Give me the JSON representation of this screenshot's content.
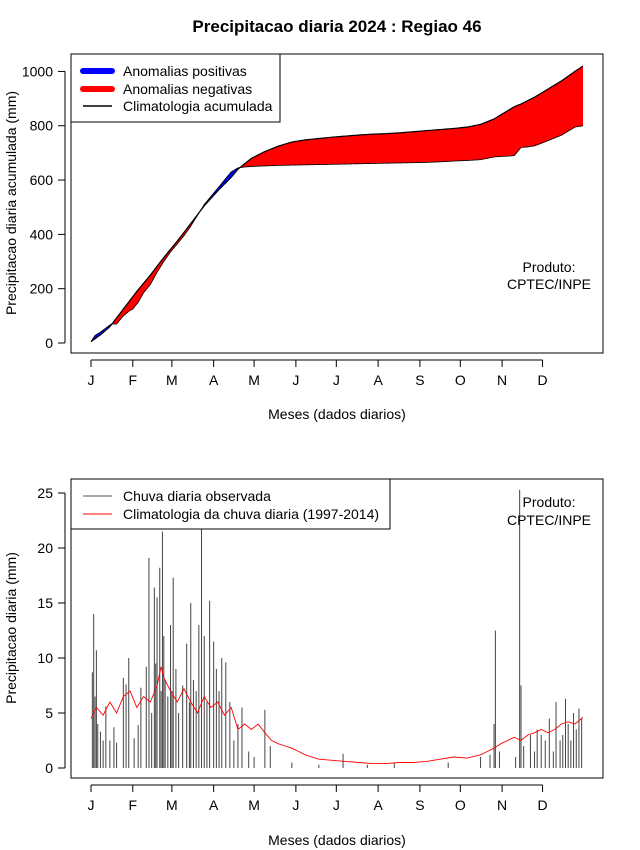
{
  "title": "Precipitacao diaria 2024 : Regiao 46",
  "chart_data": [
    {
      "type": "area",
      "ylabel": "Precipitacao diaria acumulada (mm)",
      "xlabel": "Meses (dados diarios)",
      "xlim": [
        1,
        366
      ],
      "ylim": [
        0,
        1020
      ],
      "grid": false,
      "month_ticks": [
        "J",
        "F",
        "M",
        "A",
        "M",
        "J",
        "J",
        "A",
        "S",
        "O",
        "N",
        "D"
      ],
      "y_ticks": [
        "0",
        "200",
        "400",
        "600",
        "800",
        "1000"
      ],
      "legend_position": "top-left",
      "legend": [
        {
          "label": "Anomalias positivas",
          "color": "#0000ff"
        },
        {
          "label": "Anomalias negativas",
          "color": "#ff0000"
        },
        {
          "label": "Climatologia acumulada",
          "color": "#000000"
        }
      ],
      "annotation": [
        "Produto:",
        "CPTEC/INPE"
      ],
      "series": [
        {
          "key": "observed",
          "days": [
            1,
            4,
            8,
            12,
            16,
            20,
            25,
            30,
            32,
            36,
            40,
            45,
            50,
            55,
            60,
            65,
            70,
            75,
            80,
            85,
            90,
            95,
            100,
            105,
            110,
            115,
            120,
            125,
            130,
            135,
            140,
            150,
            160,
            170,
            180,
            190,
            200,
            210,
            220,
            230,
            240,
            250,
            260,
            270,
            280,
            290,
            298,
            300,
            305,
            310,
            315,
            320,
            325,
            330,
            335,
            340,
            345,
            350,
            355,
            360,
            366
          ],
          "values": [
            5,
            28,
            40,
            55,
            70,
            70,
            100,
            120,
            125,
            150,
            185,
            215,
            260,
            300,
            335,
            365,
            395,
            430,
            470,
            510,
            540,
            570,
            600,
            630,
            645,
            648,
            650,
            651,
            652,
            653,
            654,
            655,
            656,
            657,
            658,
            659,
            660,
            661,
            662,
            663,
            664,
            665,
            667,
            670,
            672,
            675,
            683,
            685,
            687,
            688,
            690,
            720,
            722,
            726,
            735,
            745,
            755,
            765,
            780,
            795,
            800
          ]
        },
        {
          "key": "climatology",
          "days": [
            1,
            8,
            15,
            25,
            35,
            45,
            55,
            65,
            75,
            85,
            95,
            105,
            110,
            115,
            120,
            130,
            140,
            150,
            160,
            170,
            180,
            190,
            200,
            210,
            220,
            230,
            240,
            250,
            260,
            270,
            280,
            290,
            300,
            305,
            310,
            315,
            320,
            330,
            340,
            350,
            360,
            366
          ],
          "values": [
            5,
            30,
            60,
            125,
            190,
            250,
            315,
            375,
            440,
            505,
            560,
            610,
            640,
            660,
            680,
            705,
            725,
            740,
            748,
            753,
            758,
            762,
            766,
            769,
            771,
            774,
            778,
            782,
            786,
            790,
            795,
            805,
            825,
            840,
            855,
            870,
            880,
            905,
            935,
            965,
            1000,
            1020
          ]
        }
      ]
    },
    {
      "type": "line",
      "ylabel": "Precipitacao diaria (mm)",
      "xlabel": "Meses (dados diarios)",
      "xlim": [
        1,
        366
      ],
      "ylim": [
        0,
        25
      ],
      "grid": false,
      "month_ticks": [
        "J",
        "F",
        "M",
        "A",
        "M",
        "J",
        "J",
        "A",
        "S",
        "O",
        "N",
        "D"
      ],
      "y_ticks": [
        "0",
        "5",
        "10",
        "15",
        "20",
        "25"
      ],
      "legend_position": "top-left",
      "legend": [
        {
          "label": "Chuva diaria observada",
          "color": "#555555"
        },
        {
          "label": "Climatologia da chuva diaria (1997-2014)",
          "color": "#ff0000"
        }
      ],
      "annotation": [
        "Produto:",
        "CPTEC/INPE"
      ],
      "series": [
        {
          "key": "observed_daily",
          "style": "histogram-bars",
          "peaks": [
            {
              "day": 2,
              "value": 8.7
            },
            {
              "day": 3,
              "value": 14
            },
            {
              "day": 4,
              "value": 6.5
            },
            {
              "day": 5,
              "value": 10.7
            },
            {
              "day": 6,
              "value": 4
            },
            {
              "day": 8,
              "value": 3.3
            },
            {
              "day": 10,
              "value": 2.5
            },
            {
              "day": 12,
              "value": 5.6
            },
            {
              "day": 15,
              "value": 2.5
            },
            {
              "day": 18,
              "value": 3.7
            },
            {
              "day": 20,
              "value": 2.3
            },
            {
              "day": 25,
              "value": 8.2
            },
            {
              "day": 27,
              "value": 7.6
            },
            {
              "day": 29,
              "value": 10
            },
            {
              "day": 33,
              "value": 2.7
            },
            {
              "day": 36,
              "value": 3.9
            },
            {
              "day": 38,
              "value": 7.3
            },
            {
              "day": 42,
              "value": 9.2
            },
            {
              "day": 44,
              "value": 19.1
            },
            {
              "day": 46,
              "value": 5
            },
            {
              "day": 48,
              "value": 16.4
            },
            {
              "day": 49,
              "value": 9.5
            },
            {
              "day": 50,
              "value": 15.5
            },
            {
              "day": 52,
              "value": 18.2
            },
            {
              "day": 53,
              "value": 7
            },
            {
              "day": 54,
              "value": 21.5
            },
            {
              "day": 55,
              "value": 12
            },
            {
              "day": 56,
              "value": 8
            },
            {
              "day": 58,
              "value": 6.5
            },
            {
              "day": 60,
              "value": 13
            },
            {
              "day": 61,
              "value": 7
            },
            {
              "day": 62,
              "value": 17.3
            },
            {
              "day": 64,
              "value": 9
            },
            {
              "day": 66,
              "value": 5
            },
            {
              "day": 69,
              "value": 7.5
            },
            {
              "day": 72,
              "value": 11.3
            },
            {
              "day": 74,
              "value": 6
            },
            {
              "day": 75,
              "value": 15
            },
            {
              "day": 77,
              "value": 8
            },
            {
              "day": 79,
              "value": 7
            },
            {
              "day": 81,
              "value": 13
            },
            {
              "day": 83,
              "value": 22
            },
            {
              "day": 85,
              "value": 12
            },
            {
              "day": 87,
              "value": 6
            },
            {
              "day": 89,
              "value": 15.2
            },
            {
              "day": 92,
              "value": 11.5
            },
            {
              "day": 94,
              "value": 9
            },
            {
              "day": 96,
              "value": 7
            },
            {
              "day": 98,
              "value": 10
            },
            {
              "day": 101,
              "value": 9.6
            },
            {
              "day": 104,
              "value": 6
            },
            {
              "day": 107,
              "value": 2.5
            },
            {
              "day": 110,
              "value": 4
            },
            {
              "day": 113,
              "value": 5.5
            },
            {
              "day": 118,
              "value": 1.5
            },
            {
              "day": 122,
              "value": 1
            },
            {
              "day": 130,
              "value": 5.3
            },
            {
              "day": 134,
              "value": 2
            },
            {
              "day": 150,
              "value": 0.5
            },
            {
              "day": 170,
              "value": 0.3
            },
            {
              "day": 188,
              "value": 1.3
            },
            {
              "day": 206,
              "value": 0.3
            },
            {
              "day": 226,
              "value": 0.5
            },
            {
              "day": 266,
              "value": 0.5
            },
            {
              "day": 290,
              "value": 1
            },
            {
              "day": 297,
              "value": 1.2
            },
            {
              "day": 300,
              "value": 4
            },
            {
              "day": 301,
              "value": 12.5
            },
            {
              "day": 304,
              "value": 1.5
            },
            {
              "day": 316,
              "value": 1
            },
            {
              "day": 319,
              "value": 25.3
            },
            {
              "day": 320,
              "value": 7.5
            },
            {
              "day": 322,
              "value": 2
            },
            {
              "day": 327,
              "value": 3
            },
            {
              "day": 330,
              "value": 1.5
            },
            {
              "day": 332,
              "value": 3.5
            },
            {
              "day": 335,
              "value": 3
            },
            {
              "day": 338,
              "value": 2.5
            },
            {
              "day": 341,
              "value": 4.5
            },
            {
              "day": 344,
              "value": 1.5
            },
            {
              "day": 346,
              "value": 6
            },
            {
              "day": 349,
              "value": 2.5
            },
            {
              "day": 351,
              "value": 3
            },
            {
              "day": 353,
              "value": 6.3
            },
            {
              "day": 355,
              "value": 4
            },
            {
              "day": 357,
              "value": 2.5
            },
            {
              "day": 359,
              "value": 5
            },
            {
              "day": 361,
              "value": 3.5
            },
            {
              "day": 363,
              "value": 5.4
            },
            {
              "day": 365,
              "value": 4.5
            }
          ]
        },
        {
          "key": "climatology_daily",
          "days": [
            1,
            5,
            10,
            15,
            20,
            25,
            30,
            35,
            40,
            45,
            50,
            53,
            55,
            60,
            65,
            70,
            75,
            80,
            85,
            90,
            95,
            100,
            105,
            110,
            115,
            120,
            125,
            130,
            135,
            140,
            145,
            150,
            155,
            160,
            165,
            170,
            180,
            190,
            200,
            210,
            220,
            230,
            240,
            250,
            260,
            270,
            280,
            290,
            295,
            300,
            305,
            310,
            315,
            320,
            325,
            330,
            335,
            340,
            345,
            350,
            355,
            360,
            366
          ],
          "values": [
            4.5,
            5.5,
            4.8,
            6,
            5,
            6.5,
            7,
            5.5,
            6.5,
            6,
            7.5,
            9.2,
            8.2,
            7,
            6,
            7.2,
            6,
            5,
            6.5,
            5.5,
            6,
            4.8,
            5.5,
            3.5,
            4,
            3.5,
            4,
            3.2,
            2.5,
            2.2,
            2,
            1.8,
            1.5,
            1.2,
            1,
            0.8,
            0.7,
            0.6,
            0.5,
            0.4,
            0.4,
            0.5,
            0.5,
            0.6,
            0.8,
            1,
            0.9,
            1.2,
            1.5,
            1.8,
            2.2,
            2.5,
            2.8,
            2.5,
            3,
            3.2,
            3.5,
            3.2,
            3.5,
            4,
            4.2,
            4,
            4.6
          ]
        }
      ]
    }
  ]
}
